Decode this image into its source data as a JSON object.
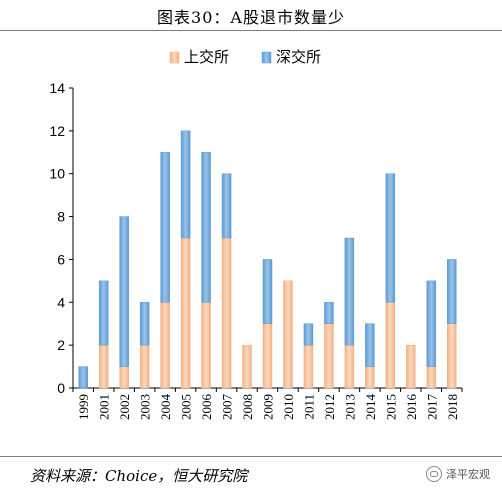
{
  "title": "图表30：A股退市数量少",
  "source": "资料来源：Choice，恒大研究院",
  "watermark": "泽平宏观",
  "watermark_icon": "wechat-icon",
  "colors": {
    "sse": "#f4b183",
    "szse": "#5b9bd5"
  },
  "chart_data": {
    "type": "bar",
    "stacked": true,
    "categories": [
      "1999",
      "2001",
      "2002",
      "2003",
      "2004",
      "2005",
      "2006",
      "2007",
      "2008",
      "2009",
      "2010",
      "2011",
      "2012",
      "2013",
      "2014",
      "2015",
      "2016",
      "2017",
      "2018"
    ],
    "series": [
      {
        "name": "上交所",
        "values": [
          0,
          2,
          1,
          2,
          4,
          7,
          4,
          7,
          2,
          3,
          5,
          2,
          3,
          2,
          1,
          4,
          2,
          1,
          3
        ]
      },
      {
        "name": "深交所",
        "values": [
          1,
          3,
          7,
          2,
          7,
          5,
          7,
          3,
          0,
          3,
          0,
          1,
          1,
          5,
          2,
          6,
          0,
          4,
          3
        ]
      }
    ],
    "ylim": [
      0,
      14
    ],
    "yticks": [
      "0",
      "2",
      "4",
      "6",
      "8",
      "10",
      "12",
      "14"
    ],
    "xlabel": "",
    "ylabel": "",
    "legend": "top-center",
    "grid": false
  }
}
